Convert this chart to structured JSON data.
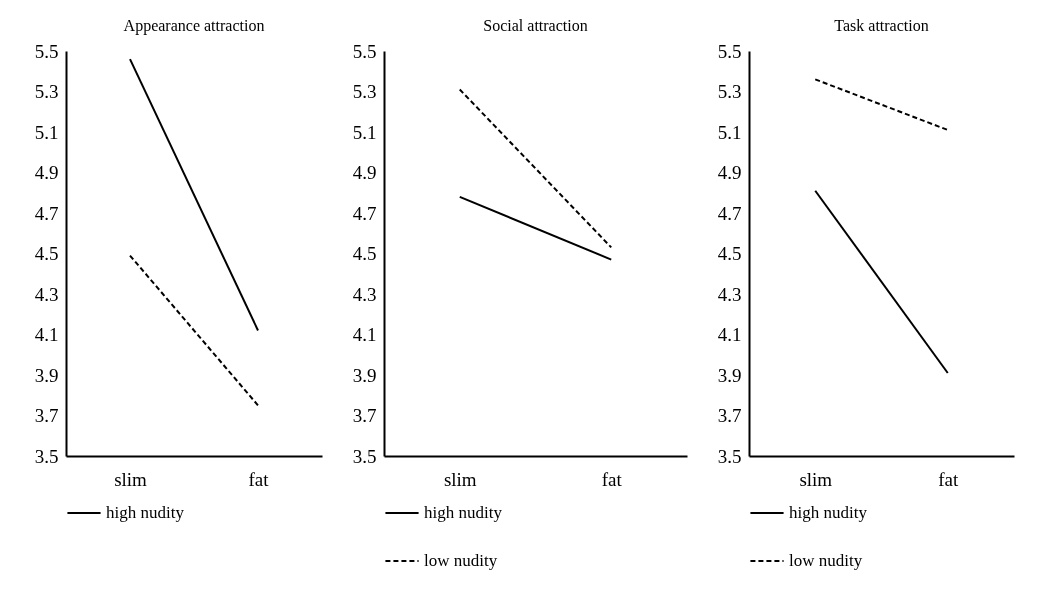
{
  "chart_data": [
    {
      "type": "line",
      "title": "Appearance attraction",
      "categories": [
        "slim",
        "fat"
      ],
      "ylim": [
        3.5,
        5.5
      ],
      "yticks": [
        3.5,
        3.7,
        3.9,
        4.1,
        4.3,
        4.5,
        4.7,
        4.9,
        5.1,
        5.3,
        5.5
      ],
      "legend": "bottom",
      "marker": "none",
      "series": [
        {
          "name": "high nudity",
          "color": "#000000",
          "line_style": "solid",
          "values": [
            5.46,
            4.12
          ]
        },
        {
          "color": "#000000",
          "line_style": "dashed",
          "values": [
            4.49,
            3.75
          ]
        }
      ]
    },
    {
      "type": "line",
      "title": "Social attraction",
      "categories": [
        "slim",
        "fat"
      ],
      "ylim": [
        3.5,
        5.5
      ],
      "yticks": [
        3.5,
        3.7,
        3.9,
        4.1,
        4.3,
        4.5,
        4.7,
        4.9,
        5.1,
        5.3,
        5.5
      ],
      "legend": "bottom",
      "marker": "none",
      "series": [
        {
          "name": "high nudity",
          "color": "#000000",
          "line_style": "solid",
          "values": [
            4.78,
            4.47
          ]
        },
        {
          "name": "low nudity",
          "color": "#000000",
          "line_style": "dashed",
          "values": [
            5.31,
            4.53
          ]
        }
      ]
    },
    {
      "type": "line",
      "title": "Task attraction",
      "categories": [
        "slim",
        "fat"
      ],
      "ylim": [
        3.5,
        5.5
      ],
      "yticks": [
        3.5,
        3.7,
        3.9,
        4.1,
        4.3,
        4.5,
        4.7,
        4.9,
        5.1,
        5.3,
        5.5
      ],
      "legend": "bottom",
      "marker": "none",
      "series": [
        {
          "name": "high nudity",
          "color": "#000000",
          "line_style": "solid",
          "values": [
            4.81,
            3.91
          ]
        },
        {
          "name": "low nudity",
          "color": "#000000",
          "line_style": "dashed",
          "values": [
            5.36,
            5.11
          ]
        }
      ]
    }
  ]
}
